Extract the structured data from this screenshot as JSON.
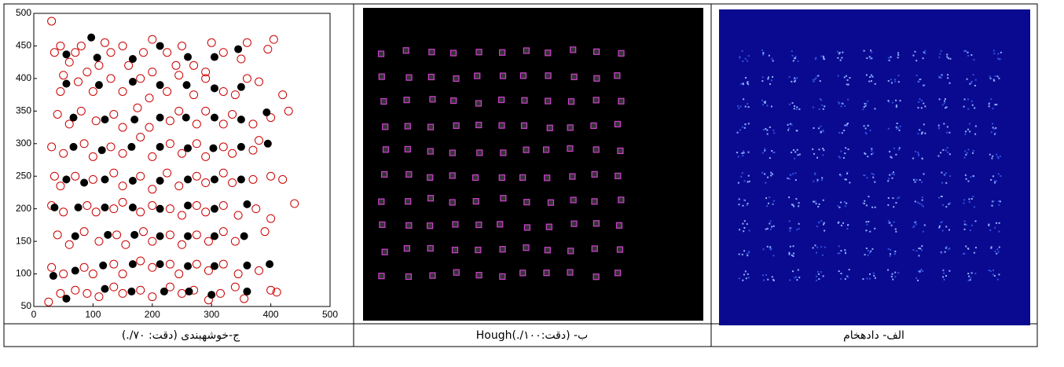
{
  "chart_data": {
    "type": "scatter",
    "xlim": [
      0,
      500
    ],
    "xticks": [
      0,
      100,
      200,
      300,
      400,
      500
    ],
    "ylim": [
      50,
      500
    ],
    "yticks": [
      50,
      100,
      150,
      200,
      250,
      300,
      350,
      400,
      450,
      500
    ],
    "series": [
      {
        "color": "#cc0000",
        "marker": "open",
        "x": [
          30,
          45,
          35,
          60,
          70,
          80,
          90,
          50,
          120,
          130,
          110,
          150,
          160,
          185,
          200,
          225,
          200,
          250,
          270,
          240,
          300,
          320,
          290,
          350,
          360,
          405,
          395,
          45,
          75,
          100,
          130,
          150,
          180,
          195,
          225,
          245,
          270,
          290,
          320,
          340,
          360,
          380,
          420,
          40,
          60,
          80,
          105,
          135,
          150,
          175,
          195,
          230,
          245,
          275,
          290,
          320,
          335,
          370,
          400,
          430,
          30,
          50,
          85,
          100,
          130,
          150,
          180,
          200,
          230,
          250,
          275,
          290,
          320,
          335,
          370,
          380,
          35,
          45,
          70,
          100,
          135,
          150,
          180,
          200,
          225,
          245,
          275,
          290,
          320,
          335,
          370,
          400,
          420,
          30,
          50,
          90,
          105,
          135,
          150,
          180,
          200,
          230,
          250,
          275,
          290,
          320,
          345,
          375,
          400,
          440,
          40,
          60,
          85,
          110,
          140,
          155,
          185,
          200,
          230,
          250,
          275,
          295,
          320,
          340,
          390,
          30,
          50,
          85,
          100,
          135,
          150,
          180,
          200,
          230,
          245,
          275,
          295,
          320,
          345,
          380,
          25,
          45,
          70,
          90,
          110,
          135,
          150,
          180,
          200,
          230,
          250,
          270,
          295,
          315,
          340,
          355,
          400,
          410
        ],
        "y": [
          488,
          450,
          440,
          425,
          440,
          450,
          410,
          405,
          455,
          440,
          420,
          450,
          420,
          440,
          460,
          440,
          410,
          450,
          420,
          420,
          455,
          440,
          410,
          430,
          455,
          460,
          445,
          380,
          395,
          380,
          400,
          380,
          400,
          370,
          380,
          405,
          375,
          400,
          380,
          375,
          400,
          395,
          375,
          345,
          330,
          350,
          335,
          345,
          325,
          355,
          325,
          335,
          350,
          330,
          350,
          330,
          345,
          330,
          340,
          350,
          295,
          285,
          300,
          280,
          295,
          285,
          310,
          280,
          300,
          285,
          300,
          280,
          295,
          285,
          290,
          305,
          250,
          235,
          250,
          245,
          255,
          235,
          250,
          230,
          255,
          235,
          250,
          240,
          255,
          240,
          245,
          250,
          245,
          205,
          195,
          205,
          195,
          200,
          210,
          195,
          205,
          200,
          190,
          205,
          195,
          205,
          190,
          200,
          185,
          208,
          160,
          145,
          165,
          150,
          160,
          145,
          165,
          150,
          160,
          145,
          160,
          150,
          165,
          150,
          165,
          110,
          100,
          110,
          100,
          115,
          100,
          120,
          110,
          115,
          100,
          115,
          105,
          115,
          100,
          105,
          57,
          70,
          75,
          70,
          65,
          80,
          70,
          75,
          65,
          80,
          70,
          75,
          60,
          70,
          80,
          62,
          75,
          72
        ]
      },
      {
        "color": "#000000",
        "marker": "filled",
        "x": [
          97,
          55,
          107,
          167,
          213,
          260,
          305,
          345,
          55,
          110,
          167,
          213,
          258,
          305,
          350,
          67,
          120,
          170,
          213,
          257,
          305,
          350,
          393,
          67,
          115,
          165,
          213,
          260,
          303,
          350,
          395,
          55,
          85,
          120,
          167,
          213,
          260,
          305,
          350,
          35,
          75,
          120,
          167,
          213,
          260,
          305,
          360,
          70,
          125,
          170,
          213,
          260,
          305,
          355,
          33,
          70,
          117,
          167,
          213,
          260,
          305,
          360,
          398,
          55,
          120,
          165,
          220,
          262,
          300,
          360
        ],
        "y": [
          463,
          437,
          432,
          430,
          450,
          433,
          433,
          445,
          392,
          390,
          395,
          390,
          390,
          385,
          387,
          340,
          337,
          337,
          340,
          340,
          340,
          337,
          348,
          295,
          290,
          295,
          295,
          293,
          293,
          295,
          300,
          245,
          240,
          245,
          243,
          243,
          245,
          245,
          245,
          202,
          202,
          202,
          202,
          200,
          205,
          200,
          207,
          158,
          160,
          160,
          158,
          158,
          158,
          158,
          97,
          105,
          113,
          115,
          115,
          112,
          112,
          113,
          115,
          62,
          77,
          73,
          73,
          73,
          68,
          73
        ]
      }
    ]
  },
  "captions": [
    "ج-خوشهبندی (دقت: ۷۰/.)",
    "ب- (دقت:۱۰۰/.)Hough",
    "الف- دادهخام"
  ]
}
